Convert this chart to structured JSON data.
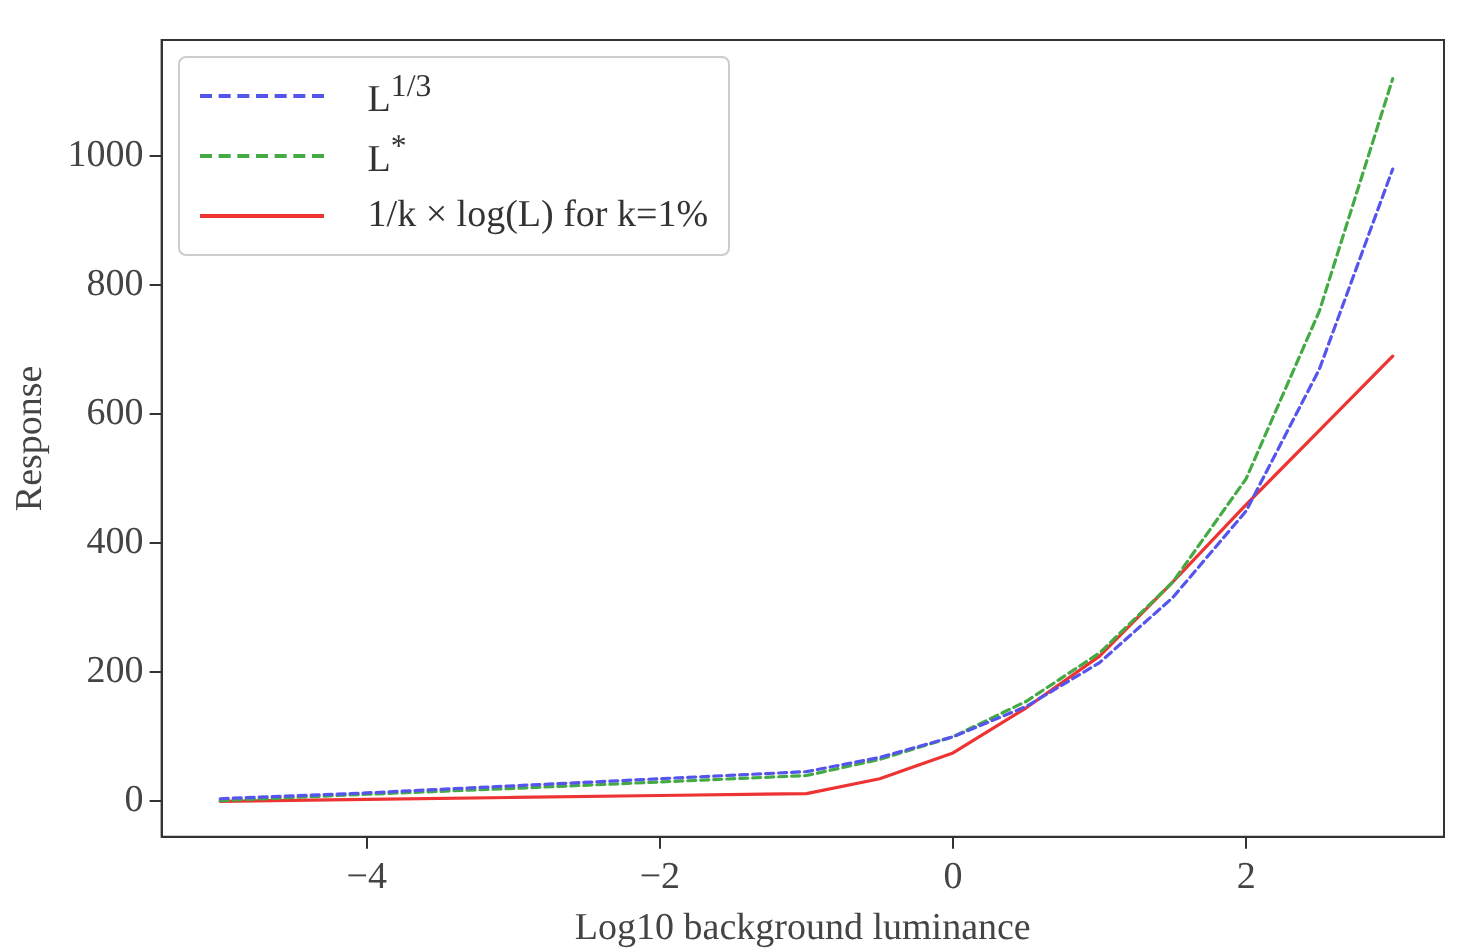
{
  "chart_data": {
    "type": "line",
    "xlabel": "Log10 background luminance",
    "ylabel": "Response",
    "xlim": [
      -5.4,
      3.35
    ],
    "ylim": [
      -55,
      1180
    ],
    "xticks": [
      {
        "value": -4,
        "label": "−4"
      },
      {
        "value": -2,
        "label": "−2"
      },
      0,
      2
    ],
    "yticks": [
      0,
      200,
      400,
      600,
      800,
      1000
    ],
    "grid": false,
    "legend": "top left",
    "marker": "none",
    "series": [
      {
        "name": "L$^{1/3}$",
        "color": "#5555ee",
        "line_style": "dashed",
        "x": [
          -5,
          -4,
          -3,
          -2,
          -1,
          -0.5,
          0,
          0.5,
          1,
          1.5,
          2,
          2.5,
          3
        ],
        "values": [
          4,
          13,
          24,
          35,
          46,
          68,
          100,
          147,
          215,
          316,
          450,
          670,
          980
        ]
      },
      {
        "name": "L$^{*}$",
        "color": "#44aa44",
        "line_style": "dashed",
        "x": [
          -5,
          -4,
          -3,
          -2,
          -1,
          -0.5,
          0,
          0.5,
          1,
          1.5,
          2,
          2.5,
          3
        ],
        "values": [
          1,
          11,
          20,
          30,
          40,
          65,
          100,
          155,
          230,
          340,
          500,
          760,
          1120
        ]
      },
      {
        "name": "1/k × log(L) for k=1%",
        "color": "#ee3333",
        "line_style": "solid",
        "x": [
          -5,
          -4,
          -3,
          -2,
          -1,
          -0.5,
          0,
          0.5,
          1,
          1.5,
          2,
          2.5,
          3
        ],
        "values": [
          0,
          3,
          6,
          9,
          12,
          35,
          75,
          145,
          225,
          340,
          460,
          575,
          690
        ]
      }
    ]
  }
}
